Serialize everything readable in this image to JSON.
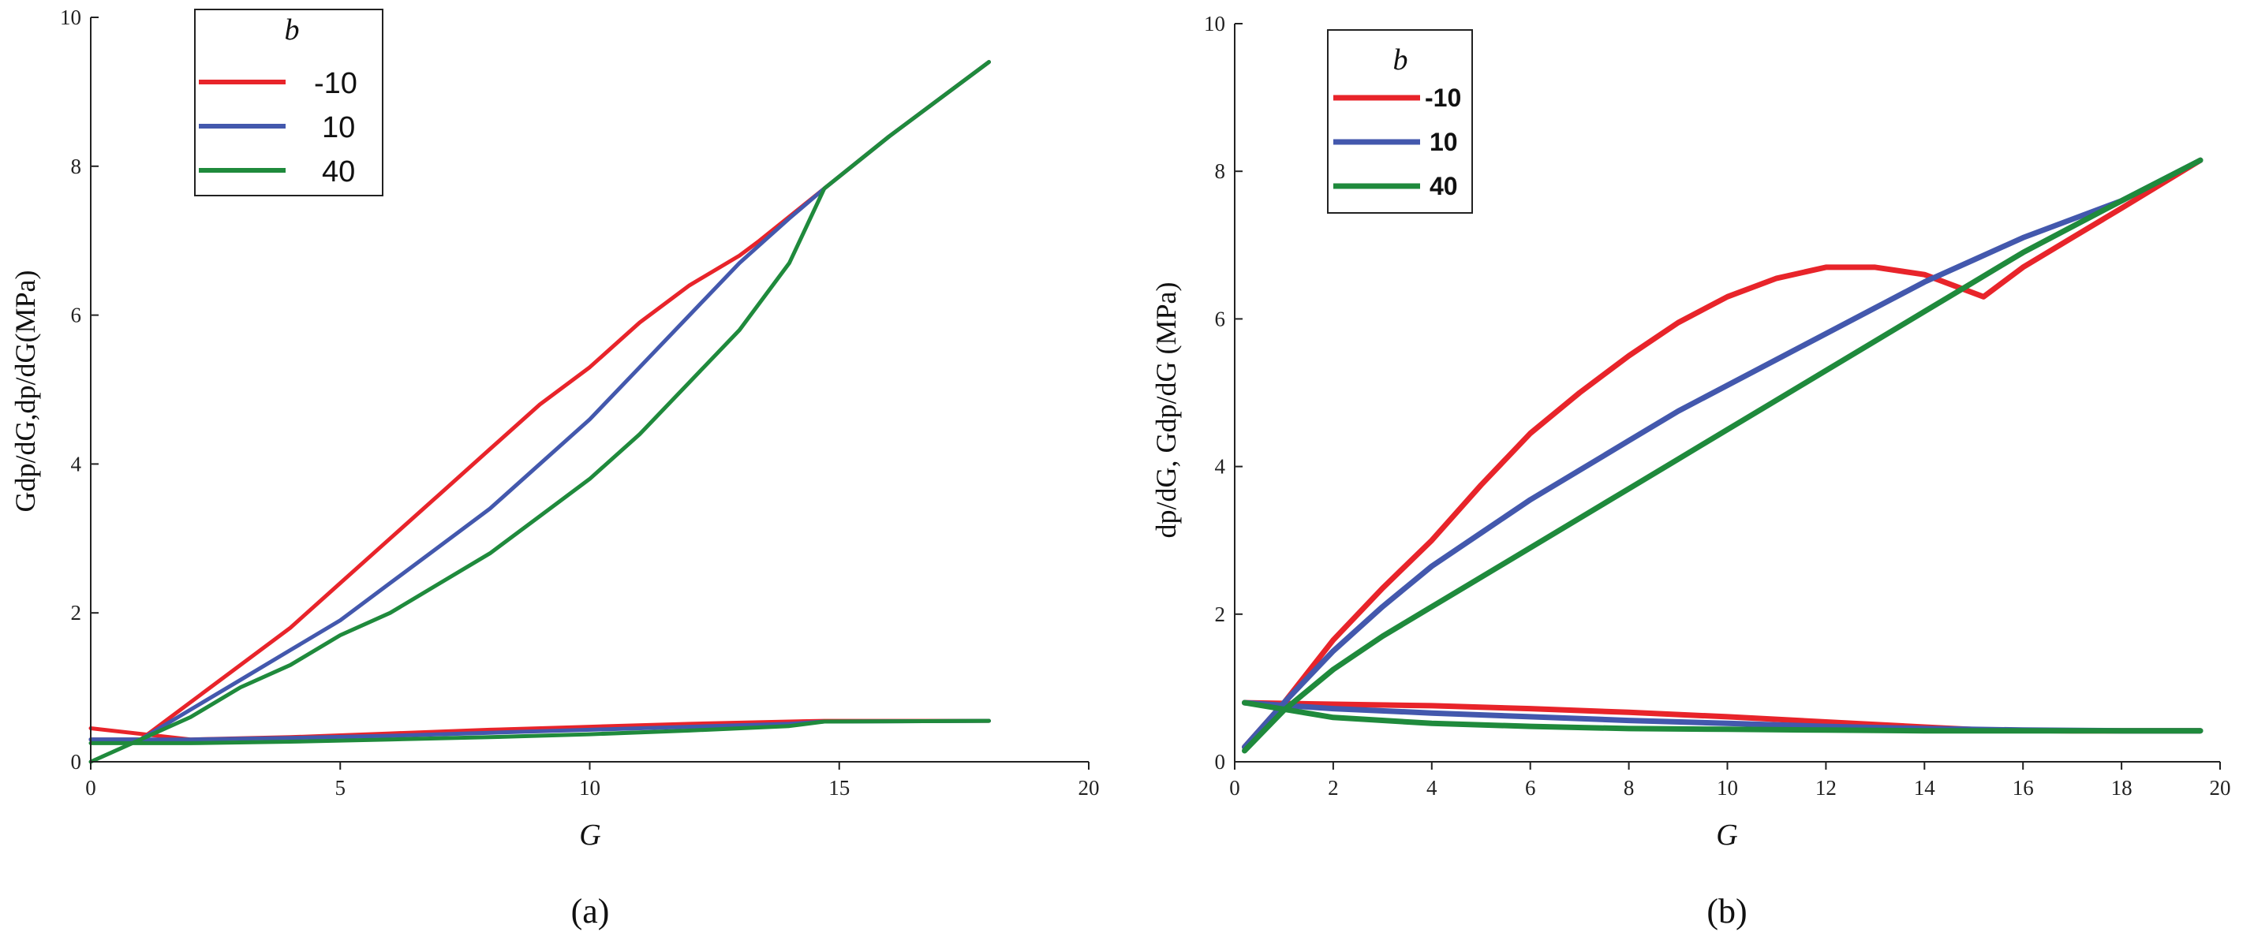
{
  "colors": {
    "red": "#e8242a",
    "blue": "#4358ad",
    "green": "#1f8a3c"
  },
  "chart_data": [
    {
      "type": "line",
      "panel_label": "(a)",
      "title": "",
      "xlabel": "G",
      "ylabel": "Gdp/dG,dp/dG(MPa)",
      "xlim": [
        0,
        20
      ],
      "ylim": [
        0,
        10
      ],
      "xticks": [
        0,
        5,
        10,
        15,
        20
      ],
      "yticks": [
        0,
        2,
        4,
        6,
        8,
        10
      ],
      "legend": {
        "title": "b",
        "placement": "top-left",
        "entries": [
          "-10",
          "10",
          "40"
        ]
      },
      "series": [
        {
          "name": "-10",
          "kind": "Gdp/dG",
          "color": "red",
          "x": [
            0,
            1,
            2,
            3,
            4,
            5,
            6,
            7,
            8,
            9,
            10,
            11,
            12,
            13,
            13.4,
            14.7,
            16,
            18
          ],
          "y": [
            0.3,
            0.3,
            0.8,
            1.3,
            1.8,
            2.4,
            3.0,
            3.6,
            4.2,
            4.8,
            5.3,
            5.9,
            6.4,
            6.8,
            7.0,
            7.7,
            8.4,
            9.4
          ]
        },
        {
          "name": "-10",
          "kind": "dp/dG",
          "color": "red",
          "x": [
            0,
            2,
            4,
            6,
            8,
            10,
            12,
            14,
            14.7,
            18
          ],
          "y": [
            0.45,
            0.3,
            0.33,
            0.38,
            0.43,
            0.47,
            0.51,
            0.54,
            0.55,
            0.55
          ]
        },
        {
          "name": "10",
          "kind": "Gdp/dG",
          "color": "blue",
          "x": [
            0,
            1,
            2,
            3,
            4,
            5,
            6,
            7,
            8,
            9,
            10,
            11,
            12,
            13,
            13.5,
            14,
            14.7,
            16,
            18
          ],
          "y": [
            0.3,
            0.3,
            0.7,
            1.1,
            1.5,
            1.9,
            2.4,
            2.9,
            3.4,
            4.0,
            4.6,
            5.3,
            6.0,
            6.7,
            7.0,
            7.3,
            7.7,
            8.4,
            9.4
          ]
        },
        {
          "name": "10",
          "kind": "dp/dG",
          "color": "blue",
          "x": [
            0,
            2,
            4,
            6,
            8,
            10,
            12,
            14,
            14.7,
            18
          ],
          "y": [
            0.3,
            0.3,
            0.32,
            0.35,
            0.39,
            0.43,
            0.47,
            0.51,
            0.54,
            0.55
          ]
        },
        {
          "name": "40",
          "kind": "Gdp/dG",
          "color": "green",
          "x": [
            0,
            1,
            2,
            3,
            4,
            5,
            6,
            7,
            8,
            9,
            10,
            11,
            12,
            13,
            14,
            14.7,
            16,
            18
          ],
          "y": [
            0.0,
            0.3,
            0.6,
            1.0,
            1.3,
            1.7,
            2.0,
            2.4,
            2.8,
            3.3,
            3.8,
            4.4,
            5.1,
            5.8,
            6.7,
            7.7,
            8.4,
            9.4
          ]
        },
        {
          "name": "40",
          "kind": "dp/dG",
          "color": "green",
          "x": [
            0,
            2,
            4,
            6,
            8,
            10,
            12,
            14,
            14.7,
            18
          ],
          "y": [
            0.25,
            0.25,
            0.27,
            0.3,
            0.33,
            0.37,
            0.42,
            0.48,
            0.54,
            0.55
          ]
        }
      ]
    },
    {
      "type": "line",
      "panel_label": "(b)",
      "title": "",
      "xlabel": "G",
      "ylabel": "dp/dG, Gdp/dG (MPa)",
      "xlim": [
        0,
        20
      ],
      "ylim": [
        0,
        10
      ],
      "xticks": [
        0,
        2,
        4,
        6,
        8,
        10,
        12,
        14,
        16,
        18,
        20
      ],
      "yticks": [
        0,
        2,
        4,
        6,
        8,
        10
      ],
      "legend": {
        "title": "b",
        "placement": "top-left",
        "entries": [
          "-10",
          "10",
          "40"
        ]
      },
      "series": [
        {
          "name": "-10",
          "kind": "Gdp/dG",
          "color": "red",
          "x": [
            0.2,
            1,
            2,
            3,
            4,
            5,
            6,
            7,
            8,
            9,
            10,
            11,
            12,
            13,
            14,
            15.2,
            16,
            17,
            18,
            19.6
          ],
          "y": [
            0.2,
            0.8,
            1.65,
            2.35,
            3.0,
            3.75,
            4.45,
            5.0,
            5.5,
            5.95,
            6.3,
            6.55,
            6.7,
            6.7,
            6.6,
            6.3,
            6.7,
            7.1,
            7.5,
            8.15
          ]
        },
        {
          "name": "-10",
          "kind": "dp/dG",
          "color": "red",
          "x": [
            0.2,
            2,
            4,
            6,
            8,
            10,
            12,
            14,
            15.2,
            17,
            19.6
          ],
          "y": [
            0.8,
            0.78,
            0.76,
            0.72,
            0.67,
            0.61,
            0.54,
            0.47,
            0.43,
            0.42,
            0.42
          ]
        },
        {
          "name": "10",
          "kind": "Gdp/dG",
          "color": "blue",
          "x": [
            0.2,
            1,
            2,
            3,
            4,
            5,
            6,
            7,
            8,
            9,
            10,
            11,
            12,
            13,
            14,
            15,
            16,
            17,
            18,
            19.6
          ],
          "y": [
            0.2,
            0.8,
            1.5,
            2.1,
            2.65,
            3.1,
            3.55,
            3.95,
            4.35,
            4.75,
            5.1,
            5.45,
            5.8,
            6.15,
            6.5,
            6.8,
            7.1,
            7.35,
            7.6,
            8.15
          ]
        },
        {
          "name": "10",
          "kind": "dp/dG",
          "color": "blue",
          "x": [
            0.2,
            2,
            4,
            6,
            8,
            10,
            12,
            14,
            16,
            18,
            19.6
          ],
          "y": [
            0.8,
            0.72,
            0.66,
            0.61,
            0.56,
            0.52,
            0.48,
            0.45,
            0.43,
            0.42,
            0.42
          ]
        },
        {
          "name": "40",
          "kind": "Gdp/dG",
          "color": "green",
          "x": [
            0.2,
            1,
            2,
            3,
            4,
            5,
            6,
            7,
            8,
            9,
            10,
            11,
            12,
            13,
            14,
            15,
            16,
            17,
            18,
            19.6
          ],
          "y": [
            0.15,
            0.7,
            1.25,
            1.7,
            2.1,
            2.5,
            2.9,
            3.3,
            3.7,
            4.1,
            4.5,
            4.9,
            5.3,
            5.7,
            6.1,
            6.5,
            6.9,
            7.25,
            7.6,
            8.15
          ]
        },
        {
          "name": "40",
          "kind": "dp/dG",
          "color": "green",
          "x": [
            0.2,
            2,
            4,
            6,
            8,
            10,
            12,
            14,
            16,
            18,
            19.6
          ],
          "y": [
            0.8,
            0.6,
            0.52,
            0.48,
            0.45,
            0.44,
            0.43,
            0.42,
            0.42,
            0.42,
            0.42
          ]
        }
      ]
    }
  ]
}
